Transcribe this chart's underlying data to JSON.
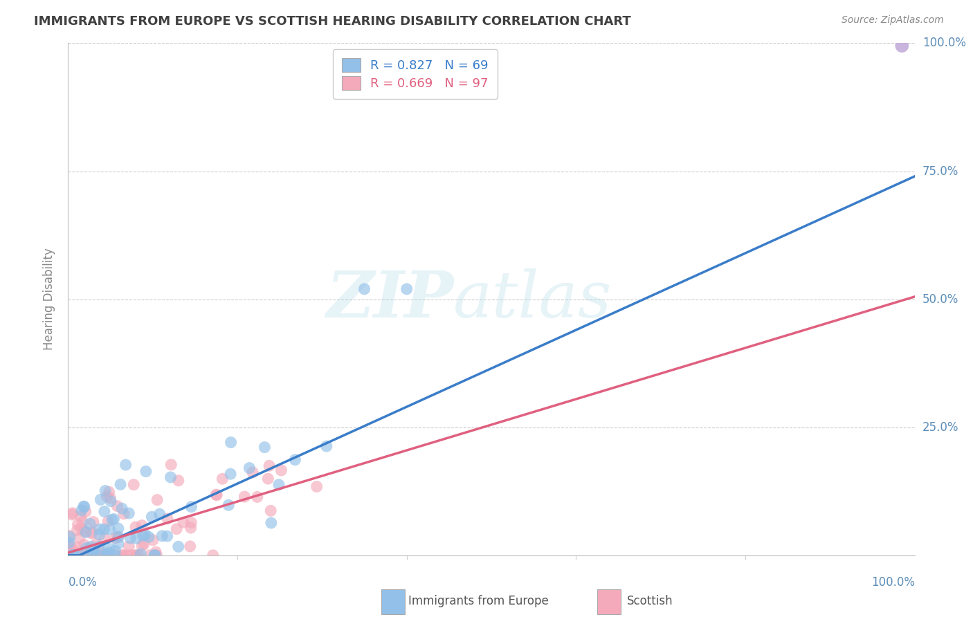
{
  "title": "IMMIGRANTS FROM EUROPE VS SCOTTISH HEARING DISABILITY CORRELATION CHART",
  "source": "Source: ZipAtlas.com",
  "ylabel": "Hearing Disability",
  "blue_R": 0.827,
  "blue_N": 69,
  "pink_R": 0.669,
  "pink_N": 97,
  "blue_color": "#92C0E8",
  "pink_color": "#F4AABB",
  "blue_line_color": "#3A7DC9",
  "pink_line_color": "#E06080",
  "outlier_color": "#C0A8D8",
  "background_color": "#ffffff",
  "grid_color": "#CCCCCC",
  "title_color": "#404040",
  "axis_label_color": "#5B8DB8",
  "watermark_color": "#ADD8E6",
  "blue_line_slope": 0.75,
  "blue_line_intercept": -1.0,
  "pink_line_slope": 0.5,
  "pink_line_intercept": 0.5,
  "ytick_vals": [
    25.0,
    50.0,
    75.0,
    100.0
  ],
  "ytick_labels": [
    "25.0%",
    "50.0%",
    "75.0%",
    "100.0%"
  ],
  "legend_label_blue": "R = 0.827   N = 69",
  "legend_label_pink": "R = 0.669   N = 97",
  "bottom_legend_blue": "Immigrants from Europe",
  "bottom_legend_pink": "Scottish"
}
